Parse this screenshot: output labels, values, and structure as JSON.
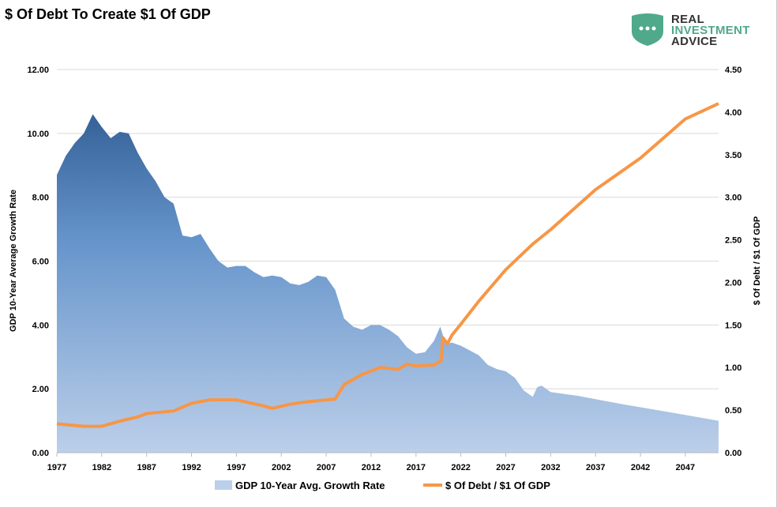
{
  "logo": {
    "line1": "REAL",
    "line2": "INVESTMENT",
    "line3": "ADVICE",
    "color": "#4fa98a"
  },
  "chart_data": {
    "type": "area+line",
    "title": "$ Of Debt To Create $1 Of GDP",
    "ylabel": "GDP 10-Year Average Growth Rate",
    "y2label": "$ Of Debt / $1 Of GDP",
    "ylim": [
      0,
      12
    ],
    "y2lim": [
      0,
      4.5
    ],
    "xlim": [
      1977,
      2050.7
    ],
    "xticks": [
      "1977",
      "1982",
      "1987",
      "1992",
      "1997",
      "2002",
      "2007",
      "2012",
      "2017",
      "2022",
      "2027",
      "2032",
      "2037",
      "2042",
      "2047"
    ],
    "yticks": [
      "0.00",
      "2.00",
      "4.00",
      "6.00",
      "8.00",
      "10.00",
      "12.00"
    ],
    "y2ticks": [
      "0.00",
      "0.50",
      "1.00",
      "1.50",
      "2.00",
      "2.50",
      "3.00",
      "3.50",
      "4.00",
      "4.50"
    ],
    "grid": true,
    "legend": "bottom",
    "series": [
      {
        "name": "GDP 10-Year Avg. Growth Rate",
        "type": "area",
        "axis": "left",
        "color": "#2e5a8e",
        "x": [
          1977,
          1978,
          1979,
          1980,
          1981,
          1982,
          1983,
          1984,
          1985,
          1986,
          1987,
          1988,
          1989,
          1990,
          1991,
          1992,
          1993,
          1994,
          1995,
          1996,
          1997,
          1998,
          1999,
          2000,
          2001,
          2002,
          2003,
          2004,
          2005,
          2006,
          2007,
          2008,
          2009,
          2010,
          2011,
          2012,
          2013,
          2014,
          2015,
          2016,
          2017,
          2018,
          2019,
          2019.7,
          2020.3,
          2021,
          2022,
          2023,
          2024,
          2025,
          2026,
          2027,
          2028,
          2029,
          2030,
          2030.5,
          2031,
          2032,
          2035,
          2040,
          2045,
          2050.7
        ],
        "y": [
          8.7,
          9.3,
          9.7,
          10.0,
          10.6,
          10.2,
          9.85,
          10.05,
          10.0,
          9.4,
          8.9,
          8.5,
          8.0,
          7.8,
          6.8,
          6.75,
          6.85,
          6.4,
          6.0,
          5.8,
          5.85,
          5.85,
          5.65,
          5.5,
          5.55,
          5.5,
          5.3,
          5.25,
          5.35,
          5.55,
          5.5,
          5.1,
          4.2,
          3.95,
          3.85,
          4.0,
          4.0,
          3.85,
          3.65,
          3.3,
          3.1,
          3.15,
          3.5,
          3.95,
          3.4,
          3.45,
          3.35,
          3.2,
          3.05,
          2.75,
          2.62,
          2.55,
          2.35,
          1.95,
          1.75,
          2.05,
          2.1,
          1.9,
          1.78,
          1.52,
          1.28,
          1.0
        ]
      },
      {
        "name": "$ Of Debt / $1 Of GDP",
        "type": "line",
        "axis": "right",
        "color": "#f79646",
        "x": [
          1977,
          1980,
          1982,
          1984,
          1986,
          1987,
          1990,
          1992,
          1994,
          1997,
          2000,
          2001,
          2003,
          2005,
          2008,
          2009,
          2011,
          2013,
          2015,
          2016,
          2017,
          2019,
          2019.8,
          2020,
          2020.5,
          2021,
          2022,
          2024,
          2027,
          2030,
          2032,
          2037,
          2042,
          2047,
          2050.7
        ],
        "y": [
          0.34,
          0.31,
          0.31,
          0.37,
          0.42,
          0.46,
          0.49,
          0.58,
          0.62,
          0.62,
          0.55,
          0.52,
          0.57,
          0.6,
          0.63,
          0.8,
          0.92,
          1.0,
          0.98,
          1.04,
          1.02,
          1.03,
          1.08,
          1.35,
          1.28,
          1.38,
          1.51,
          1.78,
          2.15,
          2.45,
          2.62,
          3.09,
          3.46,
          3.92,
          4.1
        ]
      }
    ]
  }
}
